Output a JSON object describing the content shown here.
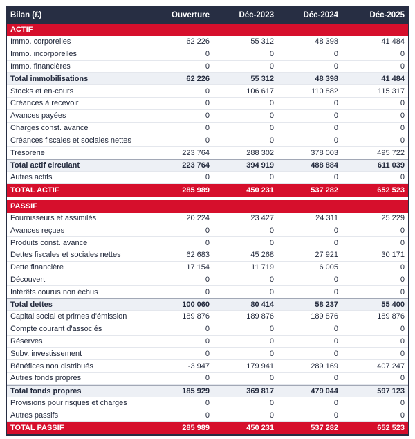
{
  "table": {
    "title": "Bilan (£)",
    "columns": [
      "Ouverture",
      "Déc-2023",
      "Déc-2024",
      "Déc-2025"
    ],
    "rows": [
      {
        "type": "section",
        "label": "ACTIF"
      },
      {
        "type": "data",
        "label": "Immo. corporelles",
        "values": [
          "62 226",
          "55 312",
          "48 398",
          "41 484"
        ]
      },
      {
        "type": "data",
        "label": "Immo. incorporelles",
        "values": [
          "0",
          "0",
          "0",
          "0"
        ]
      },
      {
        "type": "data",
        "label": "Immo. financières",
        "values": [
          "0",
          "0",
          "0",
          "0"
        ]
      },
      {
        "type": "subtotal",
        "label": "Total immobilisations",
        "values": [
          "62 226",
          "55 312",
          "48 398",
          "41 484"
        ]
      },
      {
        "type": "data",
        "label": "Stocks et en-cours",
        "values": [
          "0",
          "106 617",
          "110 882",
          "115 317"
        ]
      },
      {
        "type": "data",
        "label": "Créances à recevoir",
        "values": [
          "0",
          "0",
          "0",
          "0"
        ]
      },
      {
        "type": "data",
        "label": "Avances payées",
        "values": [
          "0",
          "0",
          "0",
          "0"
        ]
      },
      {
        "type": "data",
        "label": "Charges const. avance",
        "values": [
          "0",
          "0",
          "0",
          "0"
        ]
      },
      {
        "type": "data",
        "label": "Créances fiscales et sociales nettes",
        "values": [
          "0",
          "0",
          "0",
          "0"
        ]
      },
      {
        "type": "data",
        "label": "Trésorerie",
        "values": [
          "223 764",
          "288 302",
          "378 003",
          "495 722"
        ]
      },
      {
        "type": "subtotal",
        "label": "Total actif circulant",
        "values": [
          "223 764",
          "394 919",
          "488 884",
          "611 039"
        ]
      },
      {
        "type": "data",
        "label": "Autres actifs",
        "values": [
          "0",
          "0",
          "0",
          "0"
        ]
      },
      {
        "type": "grandtotal",
        "label": "TOTAL ACTIF",
        "values": [
          "285 989",
          "450 231",
          "537 282",
          "652 523"
        ]
      },
      {
        "type": "spacer",
        "label": ""
      },
      {
        "type": "section",
        "label": "PASSIF"
      },
      {
        "type": "data",
        "label": "Fournisseurs et assimilés",
        "values": [
          "20 224",
          "23 427",
          "24 311",
          "25 229"
        ]
      },
      {
        "type": "data",
        "label": "Avances reçues",
        "values": [
          "0",
          "0",
          "0",
          "0"
        ]
      },
      {
        "type": "data",
        "label": "Produits const. avance",
        "values": [
          "0",
          "0",
          "0",
          "0"
        ]
      },
      {
        "type": "data",
        "label": "Dettes fiscales et sociales nettes",
        "values": [
          "62 683",
          "45 268",
          "27 921",
          "30 171"
        ]
      },
      {
        "type": "data",
        "label": "Dette financière",
        "values": [
          "17 154",
          "11 719",
          "6 005",
          "0"
        ]
      },
      {
        "type": "data",
        "label": "Découvert",
        "values": [
          "0",
          "0",
          "0",
          "0"
        ]
      },
      {
        "type": "data",
        "label": "Intérêts courus non échus",
        "values": [
          "0",
          "0",
          "0",
          "0"
        ]
      },
      {
        "type": "subtotal",
        "label": "Total dettes",
        "values": [
          "100 060",
          "80 414",
          "58 237",
          "55 400"
        ]
      },
      {
        "type": "data",
        "label": "Capital social et primes d'émission",
        "values": [
          "189 876",
          "189 876",
          "189 876",
          "189 876"
        ]
      },
      {
        "type": "data",
        "label": "Compte courant d'associés",
        "values": [
          "0",
          "0",
          "0",
          "0"
        ]
      },
      {
        "type": "data",
        "label": "Réserves",
        "values": [
          "0",
          "0",
          "0",
          "0"
        ]
      },
      {
        "type": "data",
        "label": "Subv. investissement",
        "values": [
          "0",
          "0",
          "0",
          "0"
        ]
      },
      {
        "type": "data",
        "label": "Bénéfices non distribués",
        "values": [
          "-3 947",
          "179 941",
          "289 169",
          "407 247"
        ]
      },
      {
        "type": "data",
        "label": "Autres fonds propres",
        "values": [
          "0",
          "0",
          "0",
          "0"
        ]
      },
      {
        "type": "subtotal",
        "label": "Total fonds propres",
        "values": [
          "185 929",
          "369 817",
          "479 044",
          "597 123"
        ]
      },
      {
        "type": "data",
        "label": "Provisions pour risques et charges",
        "values": [
          "0",
          "0",
          "0",
          "0"
        ]
      },
      {
        "type": "data",
        "label": "Autres passifs",
        "values": [
          "0",
          "0",
          "0",
          "0"
        ]
      },
      {
        "type": "grandtotal",
        "label": "TOTAL PASSIF",
        "values": [
          "285 989",
          "450 231",
          "537 282",
          "652 523"
        ]
      }
    ]
  },
  "colors": {
    "header_bg": "#272e43",
    "accent_red": "#d60f2c",
    "subtotal_bg": "#edf0f5",
    "text": "#232a3d"
  }
}
